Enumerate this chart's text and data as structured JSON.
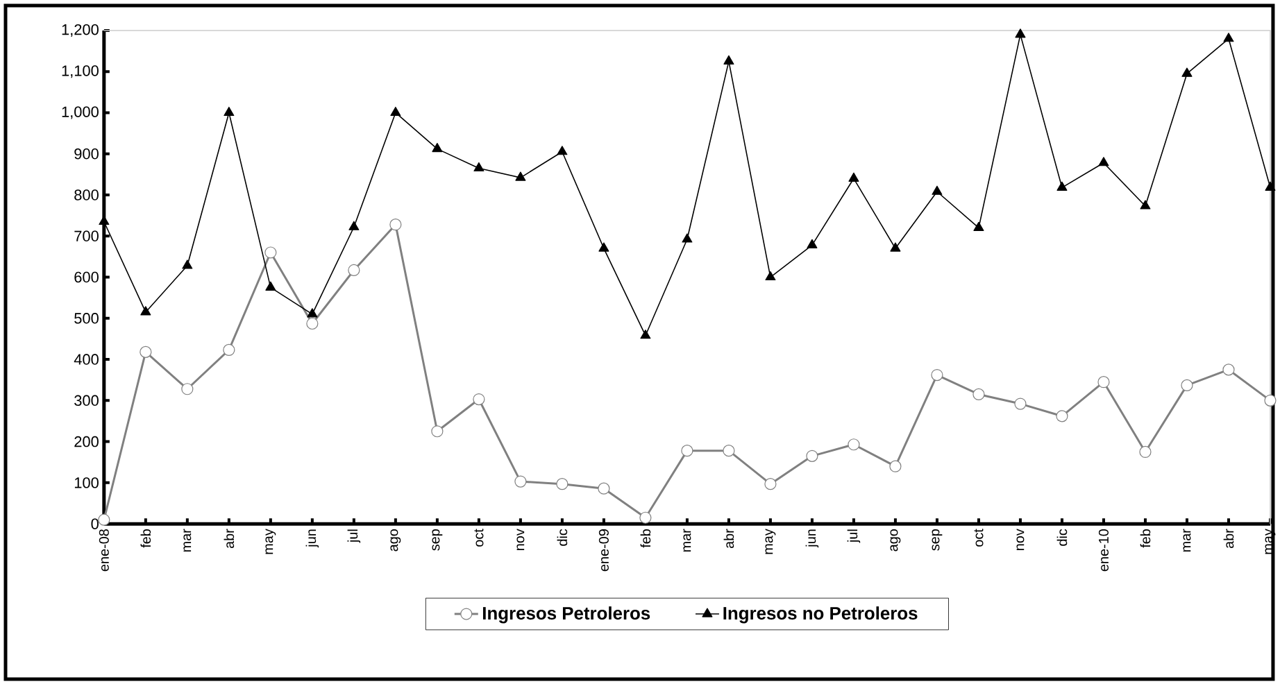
{
  "chart_data": {
    "type": "line",
    "categories": [
      "ene-08",
      "feb",
      "mar",
      "abr",
      "may",
      "jun",
      "jul",
      "ago",
      "sep",
      "oct",
      "nov",
      "dic",
      "ene-09",
      "feb",
      "mar",
      "abr",
      "may",
      "jun",
      "jul",
      "ago",
      "sep",
      "oct",
      "nov",
      "dic",
      "ene-10",
      "feb",
      "mar",
      "abr",
      "may"
    ],
    "series": [
      {
        "name": "Ingresos Petroleros",
        "color": "#808080",
        "marker": "circle",
        "values": [
          10,
          418,
          328,
          423,
          660,
          487,
          617,
          728,
          225,
          303,
          103,
          97,
          86,
          15,
          178,
          178,
          97,
          165,
          193,
          140,
          362,
          315,
          292,
          262,
          345,
          175,
          337,
          375,
          300
        ]
      },
      {
        "name": "Ingresos no Petroleros",
        "color": "#000000",
        "marker": "triangle",
        "values": [
          735,
          515,
          628,
          1000,
          575,
          510,
          722,
          1000,
          912,
          865,
          842,
          905,
          670,
          458,
          692,
          1125,
          600,
          678,
          840,
          670,
          808,
          720,
          1190,
          818,
          878,
          773,
          1095,
          1180,
          818
        ]
      }
    ],
    "ylim": [
      0,
      1200
    ],
    "yticks": [
      0,
      {
        "value": 100,
        "label": "100"
      },
      {
        "value": 200,
        "label": "200"
      },
      {
        "value": 300,
        "label": "300"
      },
      {
        "value": 400,
        "label": "400"
      },
      {
        "value": 500,
        "label": "500"
      },
      {
        "value": 600,
        "label": "600"
      },
      {
        "value": 700,
        "label": "700"
      },
      {
        "value": 800,
        "label": "800"
      },
      {
        "value": 900,
        "label": "900"
      },
      {
        "value": 1000,
        "label": "1,000"
      },
      {
        "value": 1100,
        "label": "1,100"
      },
      {
        "value": 1200,
        "label": "1,200"
      }
    ],
    "grid": false,
    "legend": "bottom",
    "line_style": "solid"
  }
}
